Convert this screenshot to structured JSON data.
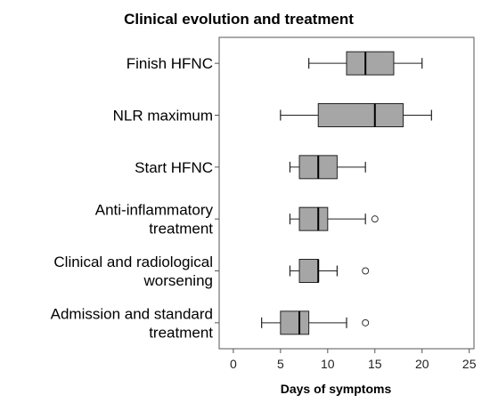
{
  "chart_data": {
    "type": "boxplot",
    "title": "Clinical evolution and treatment",
    "xlabel": "Days of symptoms",
    "ylabel": "",
    "xlim": [
      -1.5,
      25.5
    ],
    "xticks": [
      0,
      5,
      10,
      15,
      20,
      25
    ],
    "grid": false,
    "box_color": "#a6a6a6",
    "categories": [
      {
        "label": [
          "Finish HFNC"
        ],
        "whisker_low": 8,
        "q1": 12,
        "median": 14,
        "q3": 17,
        "whisker_high": 20,
        "outliers": []
      },
      {
        "label": [
          "NLR maximum"
        ],
        "whisker_low": 5,
        "q1": 9,
        "median": 15,
        "q3": 18,
        "whisker_high": 21,
        "outliers": []
      },
      {
        "label": [
          "Start HFNC"
        ],
        "whisker_low": 6,
        "q1": 7,
        "median": 9,
        "q3": 11,
        "whisker_high": 14,
        "outliers": []
      },
      {
        "label": [
          "Anti-inflammatory",
          "treatment"
        ],
        "whisker_low": 6,
        "q1": 7,
        "median": 9,
        "q3": 10,
        "whisker_high": 14,
        "outliers": [
          15
        ]
      },
      {
        "label": [
          "Clinical and radiological",
          "worsening"
        ],
        "whisker_low": 6,
        "q1": 7,
        "median": 9,
        "q3": 9,
        "whisker_high": 11,
        "outliers": [
          14
        ]
      },
      {
        "label": [
          "Admission and standard",
          "treatment"
        ],
        "whisker_low": 3,
        "q1": 5,
        "median": 7,
        "q3": 8,
        "whisker_high": 12,
        "outliers": [
          14
        ]
      }
    ]
  }
}
